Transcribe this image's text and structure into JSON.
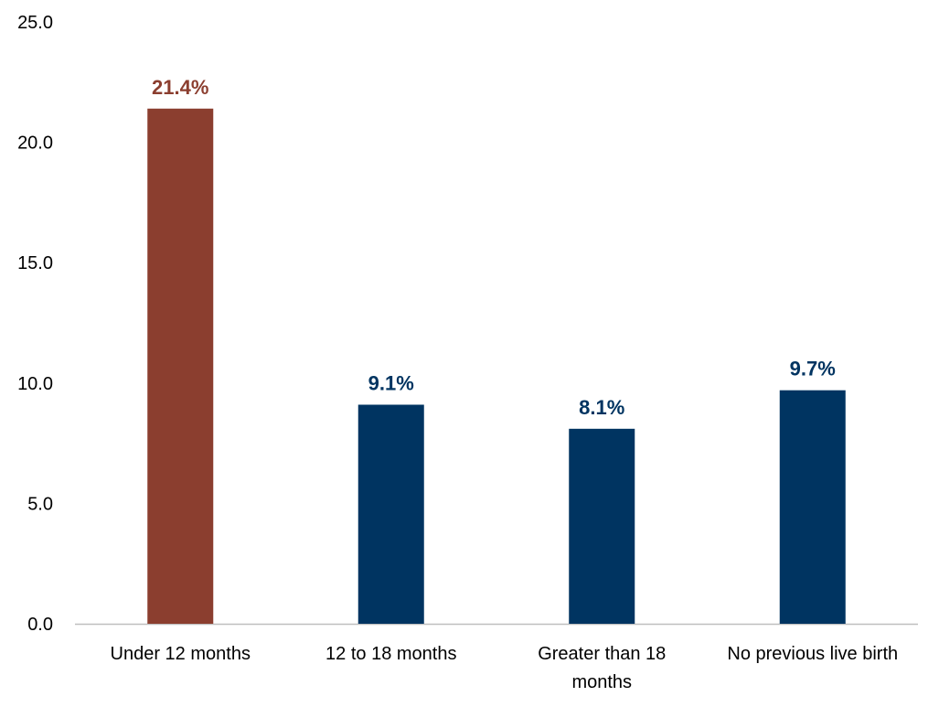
{
  "chart_data": {
    "type": "bar",
    "categories": [
      [
        "Under 12 months"
      ],
      [
        "12 to 18 months"
      ],
      [
        "Greater than 18",
        "months"
      ],
      [
        "No previous live birth"
      ]
    ],
    "values": [
      21.4,
      9.1,
      8.1,
      9.7
    ],
    "data_labels": [
      "21.4%",
      "9.1%",
      "8.1%",
      "9.7%"
    ],
    "title": "",
    "xlabel": "",
    "ylabel": "",
    "ylim": [
      0,
      25
    ],
    "yticks": [
      0,
      5,
      10,
      15,
      20,
      25
    ],
    "ytick_labels": [
      "0.0",
      "5.0",
      "10.0",
      "15.0",
      "20.0",
      "25.0"
    ],
    "grid": false,
    "legend": "none",
    "colors": {
      "highlight": "#8B3E2F",
      "default": "#003461",
      "axis": "#BFBFBF"
    },
    "bar_colors": [
      "highlight",
      "default",
      "default",
      "default"
    ]
  }
}
